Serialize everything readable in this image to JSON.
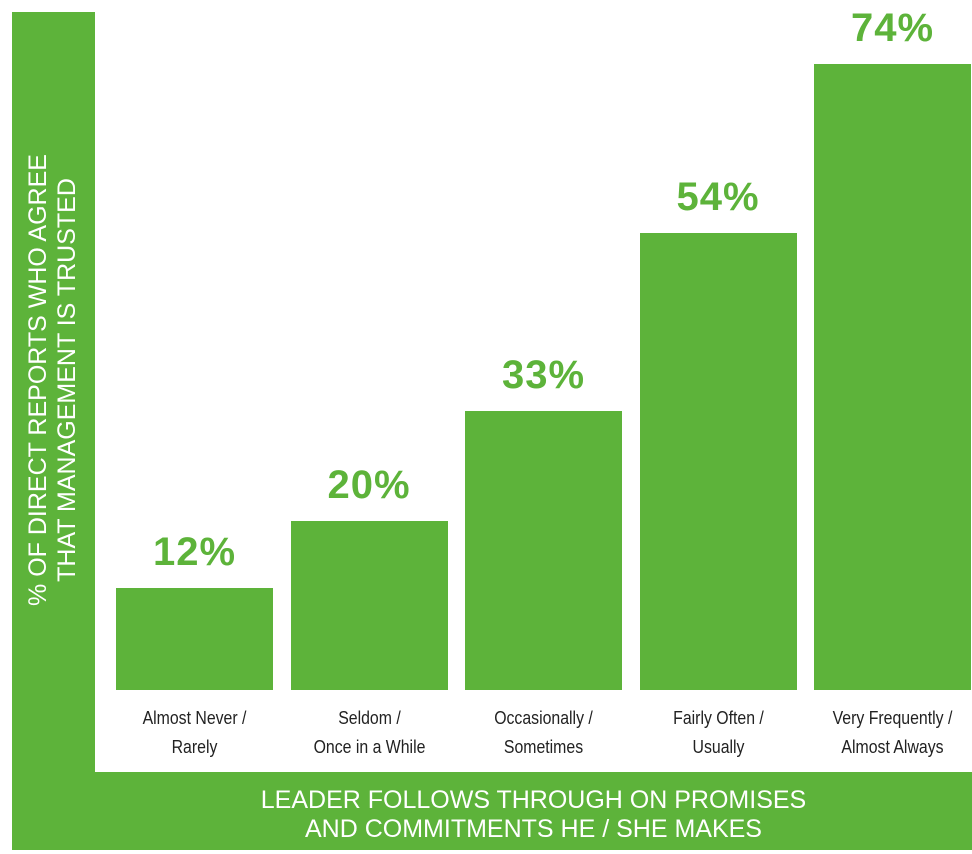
{
  "chart_data": {
    "type": "bar",
    "x_label": "LEADER FOLLOWS THROUGH ON PROMISES\nAND COMMITMENTS HE / SHE MAKES",
    "y_label": "% OF DIRECT REPORTS WHO AGREE\nTHAT MANAGEMENT IS TRUSTED",
    "categories": [
      "Almost Never /\nRarely",
      "Seldom /\nOnce in a While",
      "Occasionally /\nSometimes",
      "Fairly Often /\nUsually",
      "Very Frequently /\nAlmost Always"
    ],
    "values": [
      12,
      20,
      33,
      54,
      74
    ],
    "value_labels": [
      "12%",
      "20%",
      "33%",
      "54%",
      "74%"
    ],
    "color": "#5db33a"
  }
}
